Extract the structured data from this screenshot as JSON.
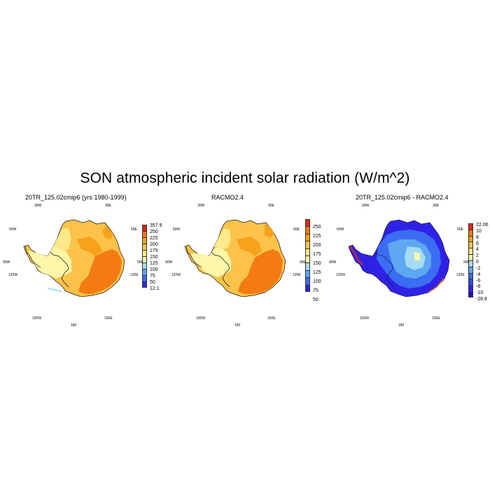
{
  "title": "SON atmospheric incident solar radiation (W/m^2)",
  "colors": {
    "yellow_light": "#fff6a8",
    "yellow": "#ffe98a",
    "orange_light": "#fcc24a",
    "orange": "#f6a21b",
    "orange_dark": "#f47b12",
    "red": "#e82316",
    "blue_dark": "#2f22e6",
    "blue": "#3a6df2",
    "blue_light": "#5ea8f2",
    "cyan_light": "#a5dcf5"
  },
  "panels": [
    {
      "title": "20TR_125.02cmip6 (yrs 1980-1999)",
      "geo_labels": {
        "top_left": "30W",
        "top_right": "30E",
        "left_upper": "60W",
        "right_upper": "60E",
        "left_mid": "90W",
        "right_mid": "90E",
        "left_lower": "120W",
        "right_lower": "120E",
        "bottom_left": "150W",
        "bottom_right": "150E",
        "bottom": "180"
      },
      "colorbar": {
        "labels": [
          "357.9",
          "250",
          "225",
          "200",
          "175",
          "150",
          "125",
          "100",
          "75",
          "50",
          "12.1"
        ],
        "colors": [
          "#e82316",
          "#f47b12",
          "#f6a21b",
          "#fcc24a",
          "#ffe98a",
          "#fff6a8",
          "#a5dcf5",
          "#5ea8f2",
          "#3a6df2",
          "#2f22e6"
        ]
      }
    },
    {
      "title": "RACMO2.4",
      "geo_labels": {
        "top_left": "30W",
        "top_right": "30E",
        "left_upper": "60W",
        "right_upper": "60E",
        "left_mid": "90W",
        "right_mid": "90E",
        "left_lower": "120W",
        "right_lower": "120E",
        "bottom_left": "150W",
        "bottom_right": "150E",
        "bottom": "180"
      },
      "colorbar": {
        "labels": [
          "250",
          "225",
          "200",
          "175",
          "150",
          "125",
          "100",
          "75",
          "50"
        ],
        "colors": [
          "#e82316",
          "#f47b12",
          "#f6a21b",
          "#fcc24a",
          "#ffe98a",
          "#fff6a8",
          "#a5dcf5",
          "#5ea8f2",
          "#3a6df2",
          "#2f22e6"
        ]
      }
    },
    {
      "title": "20TR_125.02cmip6 - RACMO2.4",
      "geo_labels": {
        "top_left": "30W",
        "top_right": "30E",
        "left_upper": "60W",
        "right_upper": "60E",
        "left_mid": "90W",
        "right_mid": "90E",
        "left_lower": "120W",
        "right_lower": "120E",
        "bottom_left": "150W",
        "bottom_right": "150E",
        "bottom": "180"
      },
      "colorbar": {
        "labels": [
          "22.06",
          "10",
          "8",
          "6",
          "4",
          "2",
          "0",
          "-2",
          "-4",
          "-6",
          "-8",
          "-10",
          "-28.8"
        ],
        "colors": [
          "#e82316",
          "#f47b12",
          "#f6a21b",
          "#fcc24a",
          "#ffe98a",
          "#fff6a8",
          "#a5dcf5",
          "#5ea8f2",
          "#3a6df2",
          "#2a4de8",
          "#2f22e6",
          "#1e10c8"
        ]
      }
    }
  ]
}
